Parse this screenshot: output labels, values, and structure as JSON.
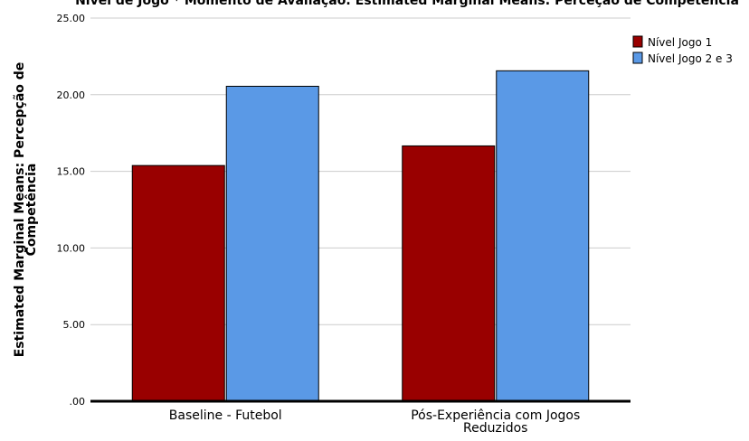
{
  "chart_data": {
    "type": "bar",
    "title": "Nível de Jogo * Momento de Avaliação: Estimated Marginal Means: Perceção de Competência",
    "categories": [
      "Baseline - Futebol",
      "Pós-Experiência com Jogos Reduzidos"
    ],
    "series": [
      {
        "name": "Nível Jogo 1",
        "color": "#990000",
        "values": [
          15.38,
          16.66
        ]
      },
      {
        "name": "Nível Jogo 2 e 3",
        "color": "#5a99e6",
        "values": [
          20.55,
          21.56
        ]
      }
    ],
    "ylabel": "Estimated Marginal Means: Percepção de Competência",
    "xlabel": "",
    "ylim": [
      0,
      25
    ],
    "yticks": [
      0,
      5,
      10,
      15,
      20,
      25
    ],
    "ytick_labels": [
      ".00",
      "5.00",
      "10.00",
      "15.00",
      "20.00",
      "25.00"
    ],
    "grid": true,
    "legend_position": "top-right"
  }
}
